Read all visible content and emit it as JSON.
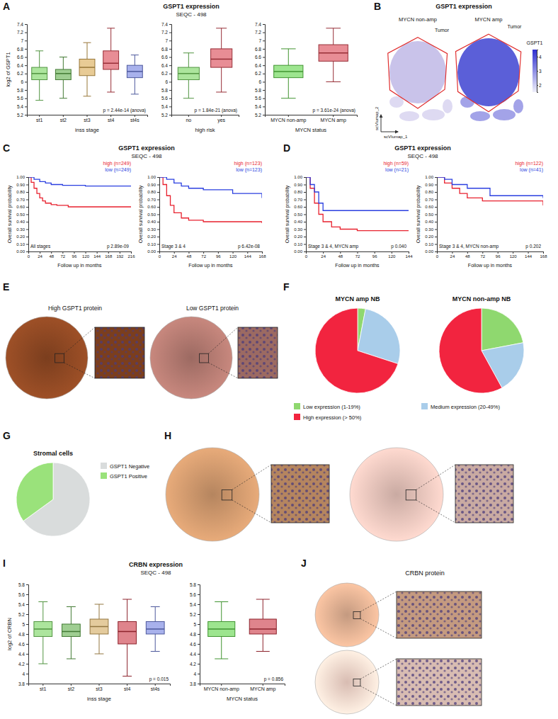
{
  "groups": [
    {
      "panel": "A",
      "title": "GSPT1 expression",
      "subtitle": "SEQC - 498"
    },
    {
      "panel": "B",
      "title": "GSPT1 expression"
    },
    {
      "panel": "C",
      "title": "GSPT1 expression",
      "subtitle": "SEQC - 498"
    },
    {
      "panel": "D",
      "title": "GSPT1 expression",
      "subtitle": "SEQC - 498"
    },
    {
      "panel": "E"
    },
    {
      "panel": "F"
    },
    {
      "panel": "G"
    },
    {
      "panel": "H"
    },
    {
      "panel": "I",
      "title": "CRBN expression",
      "subtitle": "SEQC - 498"
    },
    {
      "panel": "J"
    }
  ],
  "chart_data": [
    {
      "type": "box",
      "xlabel": "inss stage",
      "ylabel": "log2 of GSPT1",
      "categories": [
        "st1",
        "st2",
        "st3",
        "st4",
        "st4s"
      ],
      "colors": [
        "#74d45c",
        "#5fae4a",
        "#d8a84e",
        "#d8414f",
        "#6e7ddf"
      ],
      "boxes": [
        {
          "min": 5.55,
          "q1": 6.05,
          "median": 6.2,
          "q3": 6.35,
          "max": 6.75
        },
        {
          "min": 5.6,
          "q1": 6.05,
          "median": 6.2,
          "q3": 6.3,
          "max": 6.6
        },
        {
          "min": 5.65,
          "q1": 6.15,
          "median": 6.35,
          "q3": 6.55,
          "max": 6.95
        },
        {
          "min": 5.75,
          "q1": 6.3,
          "median": 6.45,
          "q3": 6.75,
          "max": 7.3
        },
        {
          "min": 5.7,
          "q1": 6.1,
          "median": 6.25,
          "q3": 6.4,
          "max": 6.65
        }
      ],
      "ylim": [
        5.2,
        7.4
      ],
      "yticks": [
        5.2,
        5.4,
        5.6,
        5.8,
        6,
        6.2,
        6.4,
        6.6,
        6.8,
        7,
        7.2,
        7.4
      ],
      "annotation": "p = 2.44e-14 (anova)"
    },
    {
      "type": "box",
      "xlabel": "high risk",
      "categories": [
        "no",
        "yes"
      ],
      "colors": [
        "#74d45c",
        "#d8414f"
      ],
      "boxes": [
        {
          "min": 5.6,
          "q1": 6.05,
          "median": 6.2,
          "q3": 6.35,
          "max": 6.7
        },
        {
          "min": 5.75,
          "q1": 6.35,
          "median": 6.55,
          "q3": 6.8,
          "max": 7.3
        }
      ],
      "ylim": [
        5.2,
        7.4
      ],
      "yticks": [
        5.2,
        5.4,
        5.6,
        5.8,
        6,
        6.2,
        6.4,
        6.6,
        6.8,
        7,
        7.2,
        7.4
      ],
      "annotation": "p = 1.84e-21 (anova)"
    },
    {
      "type": "box",
      "xlabel": "MYCN status",
      "categories": [
        "MYCN non-amp",
        "MYCN amp"
      ],
      "colors": [
        "#5cd444",
        "#d8414f"
      ],
      "boxes": [
        {
          "min": 5.6,
          "q1": 6.1,
          "median": 6.25,
          "q3": 6.4,
          "max": 6.8
        },
        {
          "min": 6.0,
          "q1": 6.5,
          "median": 6.7,
          "q3": 6.9,
          "max": 7.3
        }
      ],
      "ylim": [
        5.2,
        7.4
      ],
      "yticks": [
        5.2,
        5.4,
        5.6,
        5.8,
        6,
        6.2,
        6.4,
        6.6,
        6.8,
        7,
        7.2,
        7.4
      ],
      "annotation": "p = 3.61e-24 (anova)"
    },
    {
      "type": "umap",
      "labels": [
        "MYCN non-amp",
        "MYCN amp"
      ],
      "annotation": "Tumor",
      "xlabel": "scVIumap_1",
      "ylabel": "scVIumap_2",
      "colorbar": {
        "title": "GSPT1",
        "range": [
          1.5,
          4.5
        ],
        "ticks": [
          2,
          3,
          4
        ]
      }
    },
    {
      "type": "line",
      "line_style": "step",
      "legend": "top",
      "xlabel": "Follow up in months",
      "ylabel": "Overall survival probability",
      "note": "All stages",
      "annotation": "p 2.89e-09",
      "xlim": [
        0,
        216
      ],
      "xticks": [
        0,
        24,
        48,
        72,
        96,
        120,
        144,
        168,
        192,
        216
      ],
      "ylim": [
        0,
        1
      ],
      "yticks": [
        {
          "value": 0,
          "label": "0.00"
        },
        {
          "value": 0.1,
          "label": "0.10"
        },
        {
          "value": 0.2,
          "label": "0.20"
        },
        {
          "value": 0.3,
          "label": "0.30"
        },
        {
          "value": 0.4,
          "label": "0.40"
        },
        {
          "value": 0.5,
          "label": "0.50"
        },
        {
          "value": 0.6,
          "label": "0.60"
        },
        {
          "value": 0.7,
          "label": "0.70"
        },
        {
          "value": 0.8,
          "label": "0.80"
        },
        {
          "value": 0.9,
          "label": "0.90"
        },
        {
          "value": 1,
          "label": "1.00"
        }
      ],
      "series": [
        {
          "name": "high (n=249)",
          "color": "#e8212e",
          "x": [
            0,
            6,
            12,
            18,
            24,
            30,
            36,
            48,
            60,
            84,
            216
          ],
          "values": [
            1,
            0.93,
            0.85,
            0.78,
            0.72,
            0.68,
            0.65,
            0.63,
            0.62,
            0.6,
            0.6
          ]
        },
        {
          "name": "low (n=249)",
          "color": "#2a3fe0",
          "x": [
            0,
            12,
            24,
            36,
            48,
            72,
            120,
            216
          ],
          "values": [
            1,
            0.97,
            0.94,
            0.92,
            0.9,
            0.89,
            0.88,
            0.88
          ]
        }
      ]
    },
    {
      "type": "line",
      "line_style": "step",
      "legend": "top",
      "xlabel": "Follow up in months",
      "ylabel": "Overall survival probability",
      "note": "Stage 3 & 4",
      "annotation": "p 6.42e-08",
      "xlim": [
        0,
        168
      ],
      "xticks": [
        0,
        24,
        48,
        72,
        96,
        120,
        144,
        168
      ],
      "ylim": [
        0,
        1
      ],
      "yticks": [
        {
          "value": 0,
          "label": "0.00"
        },
        {
          "value": 0.1,
          "label": "0.10"
        },
        {
          "value": 0.2,
          "label": "0.20"
        },
        {
          "value": 0.3,
          "label": "0.30"
        },
        {
          "value": 0.4,
          "label": "0.40"
        },
        {
          "value": 0.5,
          "label": "0.50"
        },
        {
          "value": 0.6,
          "label": "0.60"
        },
        {
          "value": 0.7,
          "label": "0.70"
        },
        {
          "value": 0.8,
          "label": "0.80"
        },
        {
          "value": 0.9,
          "label": "0.90"
        },
        {
          "value": 1,
          "label": "1.00"
        }
      ],
      "series": [
        {
          "name": "high (n=123)",
          "color": "#e8212e",
          "x": [
            0,
            6,
            12,
            18,
            24,
            36,
            48,
            72,
            168
          ],
          "values": [
            1,
            0.9,
            0.75,
            0.62,
            0.52,
            0.45,
            0.42,
            0.4,
            0.38
          ]
        },
        {
          "name": "low (n=123)",
          "color": "#2a3fe0",
          "x": [
            0,
            12,
            24,
            36,
            48,
            72,
            120,
            168
          ],
          "values": [
            1,
            0.97,
            0.92,
            0.88,
            0.85,
            0.83,
            0.78,
            0.72
          ]
        }
      ]
    },
    {
      "type": "line",
      "line_style": "step",
      "legend": "top",
      "xlabel": "Follow up in months",
      "ylabel": "Overall survival probability",
      "note": "Stage 3 & 4, MYCN amp",
      "annotation": "p 0.040",
      "xlim": [
        0,
        144
      ],
      "xticks": [
        0,
        24,
        48,
        72,
        96,
        120,
        144
      ],
      "ylim": [
        0,
        1
      ],
      "yticks": [
        {
          "value": 0,
          "label": "0.00"
        },
        {
          "value": 0.1,
          "label": "0.10"
        },
        {
          "value": 0.2,
          "label": "0.20"
        },
        {
          "value": 0.3,
          "label": "0.30"
        },
        {
          "value": 0.4,
          "label": "0.40"
        },
        {
          "value": 0.5,
          "label": "0.50"
        },
        {
          "value": 0.6,
          "label": "0.60"
        },
        {
          "value": 0.7,
          "label": "0.70"
        },
        {
          "value": 0.8,
          "label": "0.80"
        },
        {
          "value": 0.9,
          "label": "0.90"
        },
        {
          "value": 1,
          "label": "1.00"
        }
      ],
      "series": [
        {
          "name": "high (n=59)",
          "color": "#e8212e",
          "x": [
            0,
            6,
            12,
            18,
            24,
            36,
            48,
            72,
            144
          ],
          "values": [
            1,
            0.85,
            0.65,
            0.5,
            0.4,
            0.33,
            0.3,
            0.28,
            0.28
          ]
        },
        {
          "name": "low (n=21)",
          "color": "#2a3fe0",
          "x": [
            0,
            6,
            12,
            18,
            24,
            144
          ],
          "values": [
            1,
            0.9,
            0.8,
            0.65,
            0.55,
            0.55
          ]
        }
      ]
    },
    {
      "type": "line",
      "line_style": "step",
      "legend": "top",
      "xlabel": "Follow up in months",
      "ylabel": "Overall survival probability",
      "note": "Stage 3 & 4, MYCN non-amp",
      "annotation": "p 0.202",
      "xlim": [
        0,
        168
      ],
      "xticks": [
        0,
        24,
        48,
        72,
        96,
        120,
        144,
        168
      ],
      "ylim": [
        0,
        1
      ],
      "yticks": [
        {
          "value": 0,
          "label": "0.00"
        },
        {
          "value": 0.1,
          "label": "0.10"
        },
        {
          "value": 0.2,
          "label": "0.20"
        },
        {
          "value": 0.3,
          "label": "0.30"
        },
        {
          "value": 0.4,
          "label": "0.40"
        },
        {
          "value": 0.5,
          "label": "0.50"
        },
        {
          "value": 0.6,
          "label": "0.60"
        },
        {
          "value": 0.7,
          "label": "0.70"
        },
        {
          "value": 0.8,
          "label": "0.80"
        },
        {
          "value": 0.9,
          "label": "0.90"
        },
        {
          "value": 1,
          "label": "1.00"
        }
      ],
      "series": [
        {
          "name": "high (n=122)",
          "color": "#e8212e",
          "x": [
            0,
            12,
            24,
            36,
            48,
            72,
            168
          ],
          "values": [
            1,
            0.92,
            0.85,
            0.78,
            0.72,
            0.68,
            0.62
          ]
        },
        {
          "name": "low (n=41)",
          "color": "#2a3fe0",
          "x": [
            0,
            12,
            24,
            48,
            84,
            168
          ],
          "values": [
            1,
            0.97,
            0.9,
            0.85,
            0.75,
            0.72
          ]
        }
      ]
    },
    {
      "type": "image",
      "images": [
        {
          "title": "High GSPT1 protein",
          "color": "#7b3e1e"
        },
        {
          "title": "Low GSPT1 protein",
          "color": "#9c6a62"
        }
      ]
    },
    {
      "type": "pie",
      "title": "MYCN amp NB",
      "categories": [
        "Low expression (1-19%)",
        "Medium expression (20-49%)",
        "High expression (> 50%)"
      ],
      "values": [
        3,
        27,
        70
      ],
      "colors": [
        "#8fd86f",
        "#a9cdea",
        "#f2243f"
      ],
      "legend": "bottom"
    },
    {
      "type": "pie",
      "title": "MYCN non-amp NB",
      "values": [
        22,
        20,
        58
      ],
      "colors": [
        "#8fd86f",
        "#a9cdea",
        "#f2243f"
      ]
    },
    {
      "type": "pie",
      "title": "Stromal cells",
      "categories": [
        "GSPT1 Negative",
        "GSPT1 Positive"
      ],
      "values": [
        65,
        35
      ],
      "colors": [
        "#d9dcdc",
        "#9ae27b"
      ],
      "legend": "right"
    },
    {
      "type": "image",
      "images": [
        {
          "color": "#b5855f"
        },
        {
          "color": "#c9aaa2"
        }
      ]
    },
    {
      "type": "box",
      "xlabel": "inss stage",
      "ylabel": "log2 of CRBN",
      "categories": [
        "st1",
        "st2",
        "st3",
        "st4",
        "st4s"
      ],
      "colors": [
        "#74d45c",
        "#5fae4a",
        "#d2a95c",
        "#c9323f",
        "#6e7ddf"
      ],
      "boxes": [
        {
          "min": 4.2,
          "q1": 4.75,
          "median": 4.9,
          "q3": 5.05,
          "max": 5.45
        },
        {
          "min": 4.3,
          "q1": 4.75,
          "median": 4.85,
          "q3": 5.0,
          "max": 5.35
        },
        {
          "min": 4.4,
          "q1": 4.8,
          "median": 4.95,
          "q3": 5.1,
          "max": 5.4
        },
        {
          "min": 3.95,
          "q1": 4.6,
          "median": 4.85,
          "q3": 5.05,
          "max": 5.5
        },
        {
          "min": 4.45,
          "q1": 4.8,
          "median": 4.9,
          "q3": 5.05,
          "max": 5.35
        }
      ],
      "ylim": [
        3.8,
        5.8
      ],
      "yticks": [
        3.8,
        4,
        4.2,
        4.4,
        4.6,
        4.8,
        5,
        5.2,
        5.4,
        5.6,
        5.8
      ],
      "annotation": "p = 0.015"
    },
    {
      "type": "box",
      "xlabel": "MYCN status",
      "categories": [
        "MYCN non-amp",
        "MYCN amp"
      ],
      "colors": [
        "#5cd444",
        "#c9323f"
      ],
      "boxes": [
        {
          "min": 4.3,
          "q1": 4.75,
          "median": 4.9,
          "q3": 5.05,
          "max": 5.45
        },
        {
          "min": 4.45,
          "q1": 4.8,
          "median": 4.9,
          "q3": 5.1,
          "max": 5.5
        }
      ],
      "ylim": [
        3.8,
        5.8
      ],
      "yticks": [
        3.8,
        4,
        4.2,
        4.4,
        4.6,
        4.8,
        5,
        5.2,
        5.4,
        5.6,
        5.8
      ],
      "annotation": "p = 0.856"
    },
    {
      "type": "image",
      "title": "CRBN protein",
      "images": [
        {
          "color": "#c49a80"
        },
        {
          "color": "#d8bcb2"
        }
      ]
    }
  ]
}
